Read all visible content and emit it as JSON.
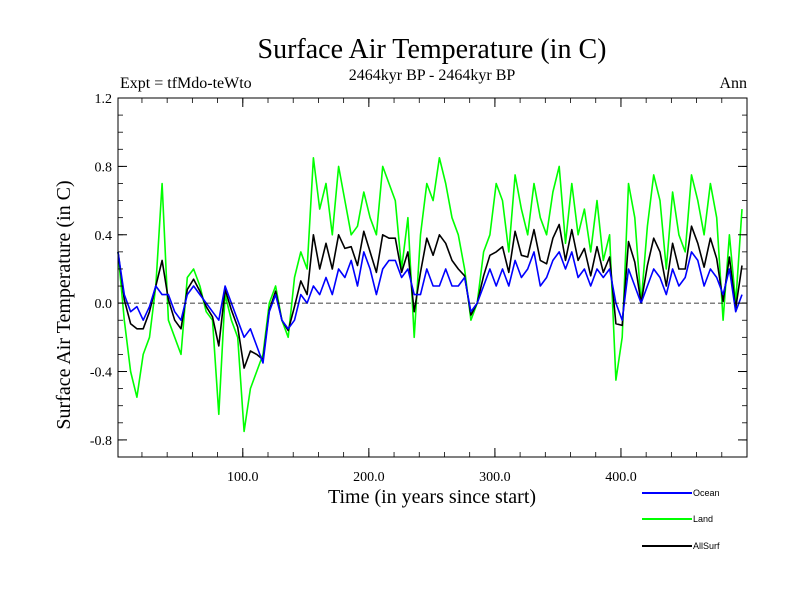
{
  "chart_data": {
    "type": "line",
    "title": "Surface Air Temperature (in C)",
    "subtitle": "2464kyr BP - 2464kyr BP",
    "left_label": "Expt = tfMdo-teWto",
    "right_label": "Ann",
    "xlabel": "Time (in years since start)",
    "ylabel": "Surface Air Temperature (in C)",
    "xlim": [
      1,
      500
    ],
    "ylim": [
      -0.9,
      1.2
    ],
    "x_ticks": [
      100,
      200,
      300,
      400
    ],
    "x_tick_labels": [
      "100.0",
      "200.0",
      "300.0",
      "400.0"
    ],
    "y_ticks": [
      -0.8,
      -0.4,
      0.0,
      0.4,
      0.8,
      1.2
    ],
    "y_tick_labels": [
      "-0.8",
      "-0.4",
      "0.0",
      "0.4",
      "0.8",
      "1.2"
    ],
    "zero_line": 0.0,
    "legend_position": "bottom-right",
    "series": [
      {
        "name": "Ocean",
        "color": "#0000ff",
        "x_start": 1,
        "x_step": 5,
        "values": [
          0.3,
          0.05,
          -0.05,
          -0.02,
          -0.1,
          -0.02,
          0.1,
          0.05,
          0.05,
          -0.05,
          -0.1,
          0.05,
          0.1,
          0.05,
          0.0,
          -0.05,
          -0.1,
          0.1,
          0.0,
          -0.1,
          -0.2,
          -0.15,
          -0.25,
          -0.35,
          -0.05,
          0.05,
          -0.1,
          -0.15,
          -0.1,
          0.05,
          0.0,
          0.1,
          0.05,
          0.15,
          0.05,
          0.2,
          0.15,
          0.25,
          0.1,
          0.3,
          0.2,
          0.05,
          0.2,
          0.25,
          0.25,
          0.15,
          0.2,
          0.05,
          0.05,
          0.2,
          0.1,
          0.1,
          0.2,
          0.1,
          0.1,
          0.15,
          -0.05,
          0.0,
          0.1,
          0.2,
          0.1,
          0.2,
          0.1,
          0.25,
          0.15,
          0.2,
          0.3,
          0.1,
          0.15,
          0.25,
          0.3,
          0.2,
          0.3,
          0.15,
          0.2,
          0.1,
          0.2,
          0.15,
          0.2,
          0.0,
          -0.1,
          0.2,
          0.1,
          0.0,
          0.1,
          0.2,
          0.15,
          0.05,
          0.2,
          0.1,
          0.15,
          0.3,
          0.25,
          0.1,
          0.2,
          0.15,
          0.05,
          0.2,
          -0.05,
          0.05
        ]
      },
      {
        "name": "Land",
        "color": "#00ff00",
        "x_start": 1,
        "x_step": 5,
        "values": [
          0.3,
          -0.1,
          -0.4,
          -0.55,
          -0.3,
          -0.2,
          0.1,
          0.7,
          -0.1,
          -0.2,
          -0.3,
          0.15,
          0.2,
          0.1,
          -0.05,
          -0.1,
          -0.65,
          0.05,
          -0.1,
          -0.2,
          -0.75,
          -0.5,
          -0.4,
          -0.3,
          0.0,
          0.1,
          -0.1,
          -0.2,
          0.15,
          0.3,
          0.2,
          0.85,
          0.55,
          0.7,
          0.4,
          0.8,
          0.6,
          0.4,
          0.45,
          0.65,
          0.5,
          0.4,
          0.8,
          0.7,
          0.6,
          0.2,
          0.5,
          -0.2,
          0.4,
          0.7,
          0.6,
          0.85,
          0.7,
          0.5,
          0.4,
          0.2,
          -0.1,
          0.0,
          0.3,
          0.4,
          0.7,
          0.6,
          0.3,
          0.75,
          0.55,
          0.4,
          0.7,
          0.5,
          0.4,
          0.65,
          0.8,
          0.35,
          0.7,
          0.4,
          0.55,
          0.3,
          0.6,
          0.25,
          0.4,
          -0.45,
          -0.2,
          0.7,
          0.5,
          0.0,
          0.45,
          0.75,
          0.6,
          0.2,
          0.65,
          0.4,
          0.3,
          0.75,
          0.6,
          0.4,
          0.7,
          0.5,
          -0.1,
          0.4,
          0.0,
          0.55
        ]
      },
      {
        "name": "AllSurf",
        "color": "#000000",
        "x_start": 1,
        "x_step": 5,
        "values": [
          0.3,
          0.02,
          -0.12,
          -0.15,
          -0.15,
          -0.05,
          0.1,
          0.25,
          0.02,
          -0.1,
          -0.15,
          0.08,
          0.14,
          0.07,
          -0.02,
          -0.08,
          -0.25,
          0.08,
          -0.04,
          -0.14,
          -0.38,
          -0.28,
          -0.3,
          -0.33,
          -0.04,
          0.07,
          -0.1,
          -0.16,
          -0.02,
          0.13,
          0.05,
          0.4,
          0.2,
          0.35,
          0.2,
          0.4,
          0.32,
          0.33,
          0.22,
          0.42,
          0.3,
          0.18,
          0.4,
          0.38,
          0.38,
          0.18,
          0.3,
          -0.05,
          0.18,
          0.38,
          0.28,
          0.4,
          0.35,
          0.25,
          0.2,
          0.16,
          -0.07,
          0.0,
          0.16,
          0.28,
          0.3,
          0.33,
          0.18,
          0.42,
          0.28,
          0.27,
          0.43,
          0.25,
          0.23,
          0.38,
          0.46,
          0.25,
          0.43,
          0.25,
          0.32,
          0.16,
          0.33,
          0.18,
          0.27,
          -0.12,
          -0.13,
          0.36,
          0.24,
          0.0,
          0.22,
          0.38,
          0.3,
          0.1,
          0.35,
          0.2,
          0.2,
          0.45,
          0.35,
          0.21,
          0.38,
          0.26,
          0.01,
          0.27,
          -0.03,
          0.22
        ]
      }
    ]
  }
}
